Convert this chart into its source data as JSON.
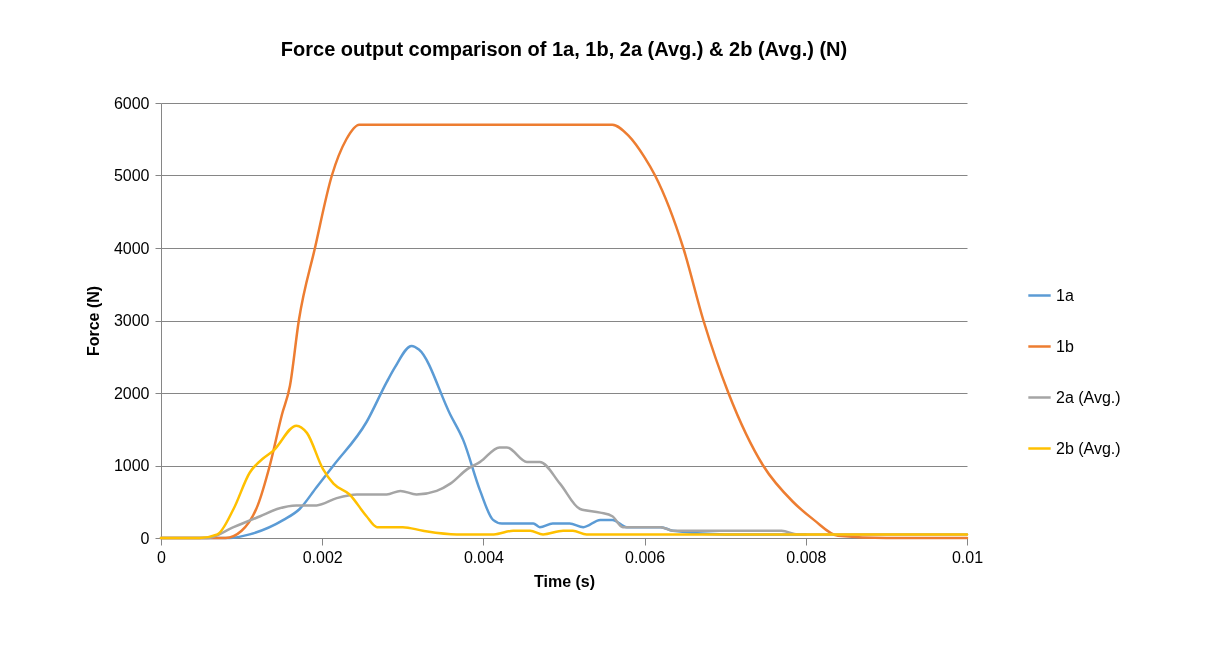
{
  "chart_data": {
    "type": "line",
    "title": "Force output comparison of 1a, 1b, 2a (Avg.) & 2b (Avg.) (N)",
    "xlabel": "Time (s)",
    "ylabel": "Force (N)",
    "xlim": [
      0,
      0.01
    ],
    "xticks": [
      0,
      0.002,
      0.004,
      0.006,
      0.008,
      0.01
    ],
    "ylim": [
      0,
      6000
    ],
    "yticks": [
      0,
      1000,
      2000,
      3000,
      4000,
      5000,
      6000
    ],
    "grid": "y",
    "legend": "right",
    "marker": "none",
    "line_style": "solid",
    "series": [
      {
        "name": "1a",
        "color": "#5b9bd5",
        "x": [
          0,
          0.00085,
          0.0011,
          0.00152,
          0.00172,
          0.00193,
          0.00214,
          0.00255,
          0.0028,
          0.0029,
          0.00311,
          0.0032,
          0.00359,
          0.00375,
          0.00396,
          0.00412,
          0.00423,
          0.00462,
          0.0047,
          0.00486,
          0.00507,
          0.00524,
          0.00545,
          0.0056,
          0.00578,
          0.0062,
          0.00635,
          0.007,
          0.0075,
          0.008
        ],
        "values": [
          0,
          0,
          50,
          250,
          400,
          700,
          1000,
          1600,
          2150,
          2350,
          2650,
          2600,
          1700,
          1350,
          650,
          250,
          200,
          200,
          150,
          200,
          200,
          150,
          250,
          250,
          150,
          150,
          100,
          50,
          50,
          50
        ]
      },
      {
        "name": "1b",
        "color": "#ed7d31",
        "x": [
          0,
          0.0008,
          0.001,
          0.0012,
          0.00135,
          0.0015,
          0.0016,
          0.00171,
          0.00191,
          0.00212,
          0.0023,
          0.00246,
          0.0056,
          0.0058,
          0.006,
          0.00613,
          0.00648,
          0.00673,
          0.00704,
          0.00747,
          0.00784,
          0.0081,
          0.0084,
          0.009,
          0.01
        ],
        "values": [
          0,
          0,
          100,
          450,
          1000,
          1700,
          2100,
          3000,
          4000,
          5000,
          5500,
          5700,
          5700,
          5550,
          5250,
          5000,
          4000,
          3000,
          2000,
          1000,
          500,
          250,
          30,
          0,
          0
        ]
      },
      {
        "name": "2a (Avg.)",
        "color": "#a5a5a5",
        "x": [
          0,
          0.00057,
          0.0009,
          0.00123,
          0.00144,
          0.00168,
          0.00193,
          0.00218,
          0.00243,
          0.00255,
          0.0028,
          0.00297,
          0.00317,
          0.00342,
          0.00359,
          0.0038,
          0.00396,
          0.0042,
          0.00429,
          0.00454,
          0.0047,
          0.00495,
          0.0052,
          0.00545,
          0.0056,
          0.00573,
          0.0062,
          0.00635,
          0.007,
          0.0074,
          0.0075,
          0.0077,
          0.0079,
          0.0085,
          0.01
        ],
        "values": [
          0,
          0,
          150,
          300,
          400,
          450,
          450,
          550,
          600,
          600,
          600,
          650,
          600,
          650,
          750,
          950,
          1050,
          1250,
          1250,
          1050,
          1050,
          750,
          400,
          350,
          300,
          150,
          150,
          100,
          100,
          100,
          100,
          100,
          50,
          50,
          50
        ]
      },
      {
        "name": "2b (Avg.)",
        "color": "#ffc000",
        "x": [
          0,
          0.00048,
          0.0007,
          0.0009,
          0.0011,
          0.00127,
          0.00139,
          0.00168,
          0.00181,
          0.00201,
          0.00214,
          0.00234,
          0.00255,
          0.00268,
          0.003,
          0.00325,
          0.00367,
          0.0038,
          0.00413,
          0.00437,
          0.00458,
          0.00474,
          0.00499,
          0.00511,
          0.00528,
          0.006,
          0.008,
          0.01
        ],
        "values": [
          0,
          0,
          50,
          400,
          900,
          1100,
          1200,
          1550,
          1450,
          950,
          750,
          600,
          300,
          150,
          150,
          100,
          50,
          50,
          50,
          100,
          100,
          50,
          100,
          100,
          50,
          50,
          50,
          50
        ]
      }
    ]
  }
}
